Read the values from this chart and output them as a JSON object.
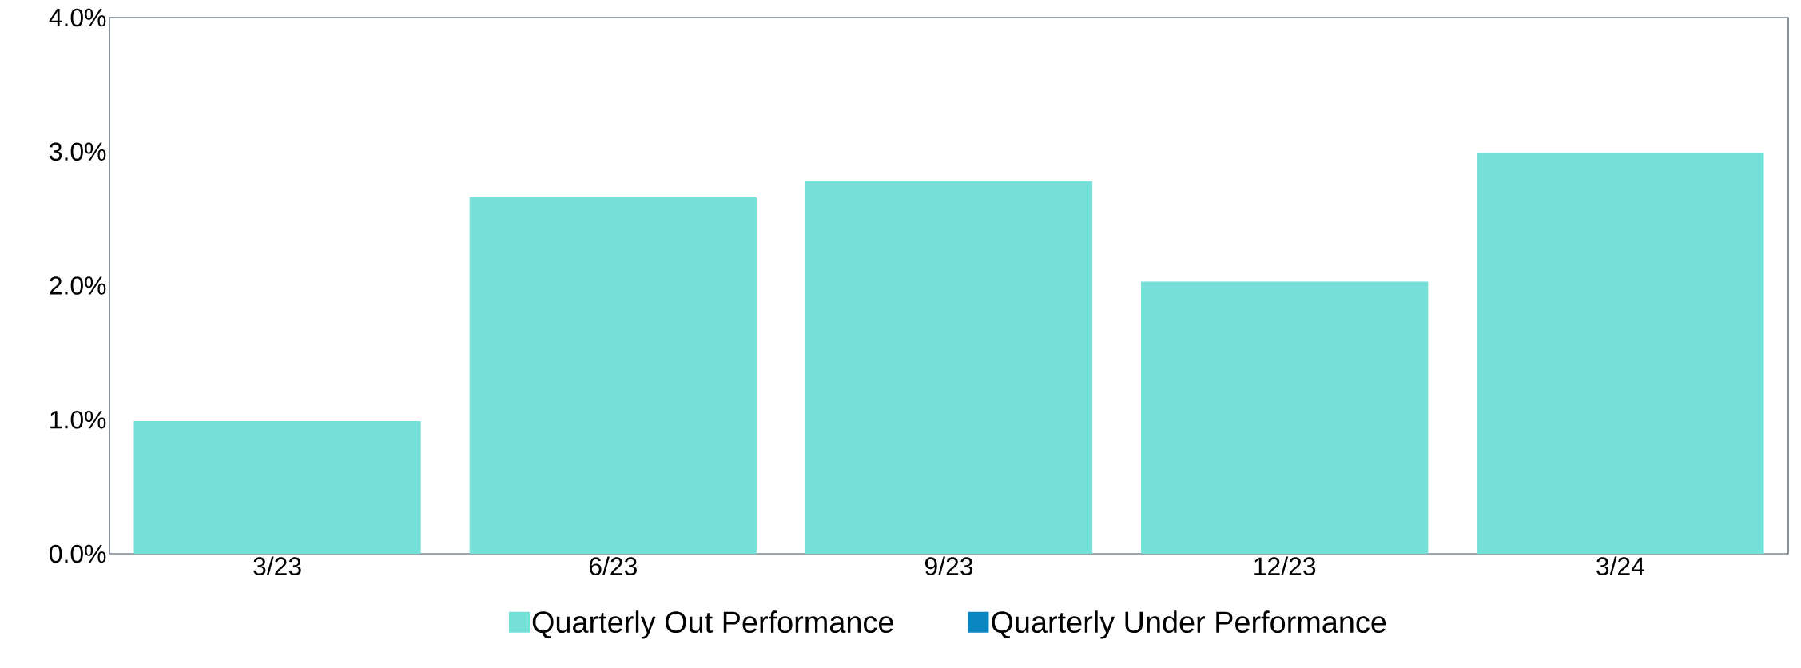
{
  "chart_data": {
    "type": "bar",
    "categories": [
      "3/23",
      "6/23",
      "9/23",
      "12/23",
      "3/24"
    ],
    "series": [
      {
        "name": "Quarterly Out Performance",
        "color": "#74e0d8",
        "values": [
          0.99,
          2.66,
          2.78,
          2.03,
          2.99
        ]
      },
      {
        "name": "Quarterly Under Performance",
        "color": "#0a86c0",
        "values": [
          null,
          null,
          null,
          null,
          null
        ]
      }
    ],
    "ylim": [
      0,
      4
    ],
    "yticks": [
      {
        "value": 0,
        "label": "0.0%"
      },
      {
        "value": 1,
        "label": "1.0%"
      },
      {
        "value": 2,
        "label": "2.0%"
      },
      {
        "value": 3,
        "label": "3.0%"
      },
      {
        "value": 4,
        "label": "4.0%"
      }
    ],
    "legend": "bottom"
  }
}
